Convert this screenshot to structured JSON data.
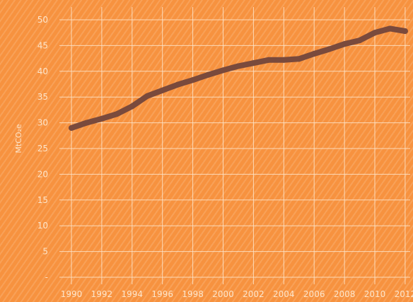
{
  "chart_data": {
    "type": "line",
    "ylabel": "MtCO₂e",
    "yticks": [
      "-",
      "5",
      "10",
      "15",
      "20",
      "25",
      "30",
      "35",
      "40",
      "45",
      "50"
    ],
    "ytick_values": [
      0,
      5,
      10,
      15,
      20,
      25,
      30,
      35,
      40,
      45,
      50
    ],
    "xticks": [
      "1990",
      "1992",
      "1994",
      "1996",
      "1998",
      "2000",
      "2002",
      "2004",
      "2006",
      "2008",
      "2010",
      "2012"
    ],
    "xtick_values": [
      1990,
      1992,
      1994,
      1996,
      1998,
      2000,
      2002,
      2004,
      2006,
      2008,
      2010,
      2012
    ],
    "xlim": [
      1989.3,
      2012.5
    ],
    "ylim": [
      0,
      50
    ],
    "grid": true,
    "colors": {
      "line": "#7a4a3c",
      "grid": "#fde6cc",
      "text": "#fde6cc",
      "background": "#f7923f"
    },
    "series": [
      {
        "x": [
          1990,
          1991,
          1992,
          1993,
          1994,
          1995,
          1996,
          1997,
          1998,
          1999,
          2000,
          2001,
          2002,
          2003,
          2004,
          2005,
          2006,
          2007,
          2008,
          2009,
          2010,
          2011,
          2012
        ],
        "values": [
          29.0,
          30.0,
          30.8,
          31.7,
          33.2,
          35.2,
          36.3,
          37.4,
          38.3,
          39.3,
          40.2,
          41.0,
          41.6,
          42.2,
          42.2,
          42.4,
          43.4,
          44.3,
          45.3,
          46.0,
          47.5,
          48.3,
          47.8
        ]
      }
    ]
  }
}
